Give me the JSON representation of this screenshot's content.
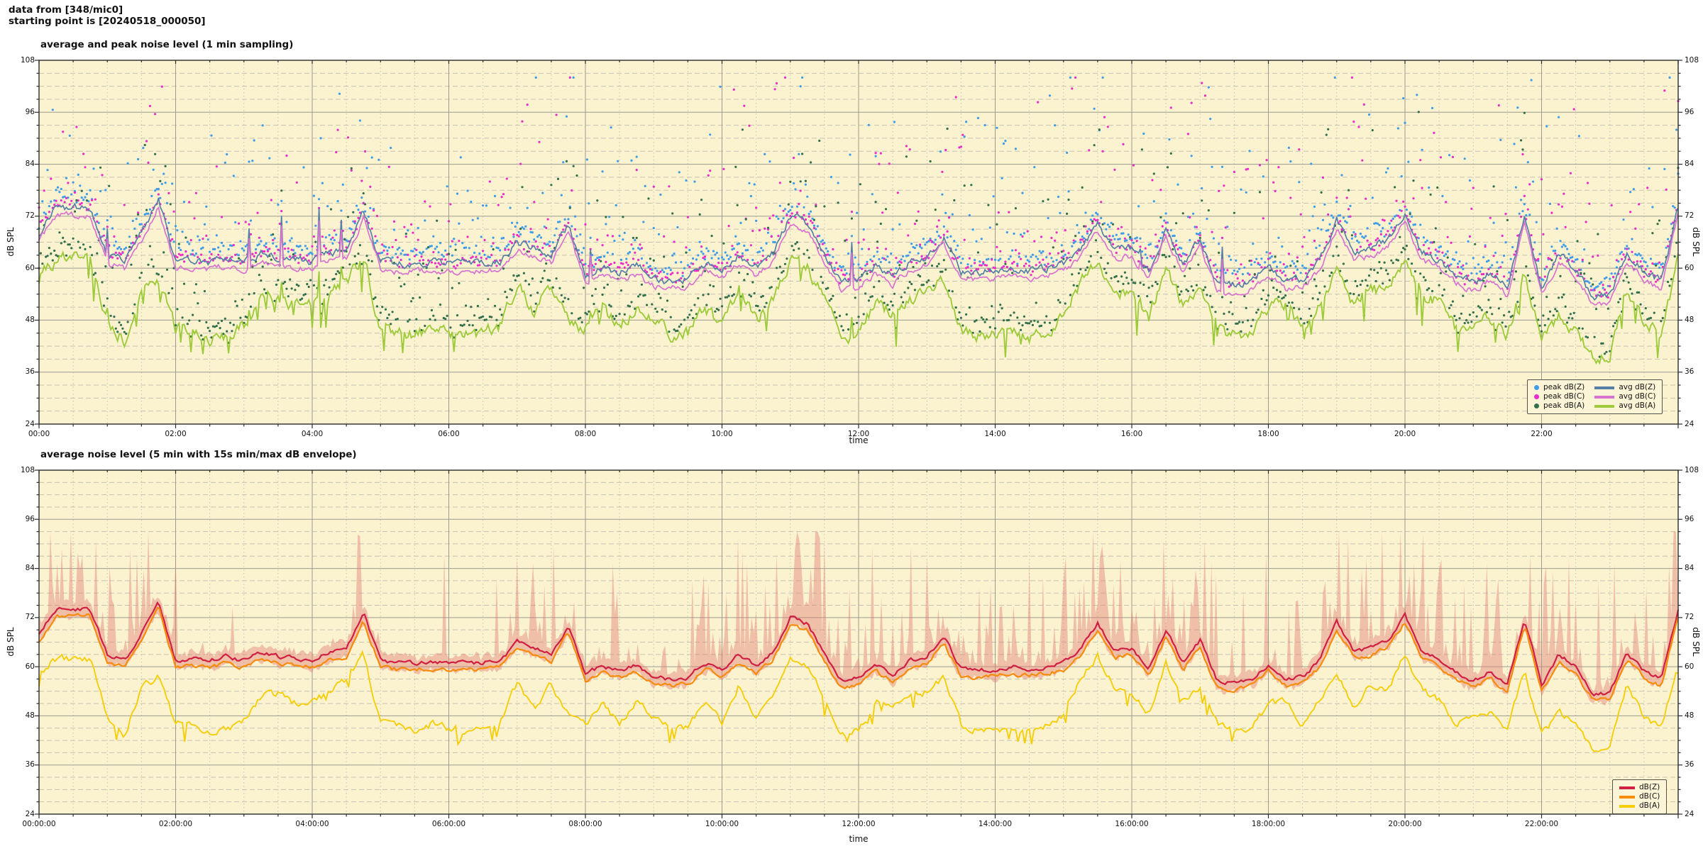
{
  "header": {
    "line1": "data from [348/mic0]",
    "line2": "starting point is [20240518_000050]"
  },
  "colors": {
    "page_bg": "#ffffff",
    "plot_bg": "#fbf2d0",
    "border": "#2b2b2b",
    "grid_major": "#9d9b90",
    "grid_minor": "#c6c2b2",
    "avg_dbz": "#557fa6",
    "avg_dbc": "#d773cf",
    "avg_dba": "#9ecb3b",
    "peak_dbz": "#3f9ce8",
    "peak_dbc": "#ec2cc8",
    "peak_dba": "#31704a",
    "bot_dbz": "#cf1f43",
    "bot_dbc": "#f68b0c",
    "bot_dba": "#f5ce0a",
    "envelope": "rgba(225,122,110,0.42)"
  },
  "plots": [
    {
      "title": "average and peak noise level (1 min sampling)",
      "xlabel": "time",
      "ylabel_left": "dB SPL",
      "ylabel_right": "dB SPL",
      "x_tick_labels": [
        "00:00",
        "02:00",
        "04:00",
        "06:00",
        "08:00",
        "10:00",
        "12:00",
        "14:00",
        "16:00",
        "18:00",
        "20:00",
        "22:00"
      ],
      "y_tick_labels": [
        24,
        36,
        48,
        60,
        72,
        84,
        96,
        108
      ],
      "legend_scatter": [
        {
          "label": "peak dB(Z)",
          "color": "#3f9ce8"
        },
        {
          "label": "peak dB(C)",
          "color": "#ec2cc8"
        },
        {
          "label": "peak dB(A)",
          "color": "#31704a"
        }
      ],
      "legend_lines": [
        {
          "label": "avg dB(Z)",
          "color": "#557fa6"
        },
        {
          "label": "avg dB(C)",
          "color": "#d773cf"
        },
        {
          "label": "avg dB(A)",
          "color": "#9ecb3b"
        }
      ]
    },
    {
      "title": "average noise level (5 min with 15s min/max dB envelope)",
      "xlabel": "time",
      "ylabel_left": "dB SPL",
      "ylabel_right": "dB SPL",
      "x_tick_labels": [
        "00:00:00",
        "02:00:00",
        "04:00:00",
        "06:00:00",
        "08:00:00",
        "10:00:00",
        "12:00:00",
        "14:00:00",
        "16:00:00",
        "18:00:00",
        "20:00:00",
        "22:00:00"
      ],
      "y_tick_labels": [
        24,
        36,
        48,
        60,
        72,
        84,
        96,
        108
      ],
      "legend_lines": [
        {
          "label": "dB(Z)",
          "color": "#cf1f43"
        },
        {
          "label": "dB(C)",
          "color": "#f68b0c"
        },
        {
          "label": "dB(A)",
          "color": "#f5ce0a"
        }
      ]
    }
  ],
  "chart_data": {
    "type": "line",
    "x_axis": {
      "label": "time",
      "range_hours": [
        0,
        24
      ],
      "major_tick_step_hours": 2,
      "minor_tick_step_minutes": 30
    },
    "y_axis": {
      "label": "dB SPL",
      "range": [
        24,
        108
      ],
      "major_step": 12,
      "minor_step": 3
    },
    "grid": "major solid + minor dashed, cream background",
    "anchor_step_minutes": 15,
    "series_anchors": {
      "avg_dbz": [
        68,
        74,
        74,
        74,
        63,
        61.5,
        68,
        76,
        61.5,
        62,
        61.5,
        62.5,
        61.5,
        63.5,
        62.5,
        62,
        61.5,
        63.5,
        64,
        73,
        61.5,
        61,
        61,
        61.2,
        61,
        61,
        61,
        61.5,
        66,
        64.5,
        63,
        70,
        58.5,
        60,
        59,
        60.5,
        57.5,
        57,
        57.5,
        61,
        59.5,
        63,
        60,
        63.5,
        72,
        70.5,
        63,
        56.5,
        57.5,
        60.5,
        58,
        61.5,
        62.5,
        67.5,
        59.5,
        59,
        59.5,
        60,
        59.5,
        60,
        61,
        64.5,
        70.5,
        64,
        64.5,
        59.5,
        69,
        61,
        66.5,
        56.5,
        56,
        57,
        60.5,
        57,
        57.5,
        61.5,
        71,
        64,
        64.5,
        66.5,
        72.5,
        63.5,
        62,
        58.5,
        56.5,
        59,
        55.5,
        72,
        55.5,
        63,
        60,
        53.5,
        53.5,
        63.5,
        59,
        57,
        74
      ],
      "avg_dba": [
        58,
        62,
        62,
        62,
        48,
        43,
        55,
        57.5,
        46,
        46.5,
        44,
        44.5,
        47,
        52.5,
        53.5,
        51,
        52,
        53.5,
        57,
        63,
        46,
        45.5,
        44.5,
        46,
        45,
        44.5,
        45,
        46.5,
        56,
        50,
        56,
        48,
        46,
        50.5,
        46,
        51.5,
        48,
        44.5,
        45,
        51.5,
        46,
        55.5,
        48,
        52,
        62,
        60,
        53,
        43.5,
        44.5,
        52,
        49.5,
        53,
        54,
        57.5,
        46,
        44.5,
        44.5,
        45,
        44,
        45.5,
        48.5,
        57,
        62.5,
        55,
        53.5,
        48,
        61,
        51,
        55.5,
        46,
        44.5,
        44.5,
        51,
        51.5,
        45.5,
        52,
        58.5,
        50.5,
        56,
        54,
        63,
        54,
        52,
        45.5,
        48,
        48.5,
        45,
        59,
        43,
        49,
        45.5,
        39.5,
        40,
        55.5,
        47.5,
        44.5,
        62
      ],
      "avg_dbc_offset_from_z": -1.8
    },
    "spike_regions_hours": [
      [
        0.05,
        0.95,
        0.3
      ],
      [
        1.0,
        2.05,
        0.3
      ],
      [
        2.05,
        4.3,
        0.08
      ],
      [
        4.3,
        5.0,
        0.35
      ],
      [
        5.0,
        6.8,
        0.04
      ],
      [
        6.8,
        8.0,
        0.5
      ],
      [
        8.0,
        9.7,
        0.25
      ],
      [
        9.7,
        11.7,
        0.55
      ],
      [
        11.7,
        13.0,
        0.4
      ],
      [
        13.0,
        17.2,
        0.55
      ],
      [
        17.2,
        18.8,
        0.25
      ],
      [
        18.8,
        22.6,
        0.55
      ],
      [
        22.6,
        23.8,
        0.2
      ],
      [
        23.8,
        24.0,
        0.6
      ]
    ],
    "plots": [
      {
        "title": "average and peak noise level (1 min sampling)",
        "series": [
          "peak dB(Z)",
          "peak dB(C)",
          "peak dB(A)",
          "avg dB(Z)",
          "avg dB(C)",
          "avg dB(A)"
        ],
        "note": "peak scatter points lie roughly 1-25 dB above the corresponding avg lines; densest and highest (up to ~90 dB) between 07:00 and 22:00"
      },
      {
        "title": "average noise level (5 min with 15s min/max dB envelope)",
        "series": [
          "dB(Z)",
          "dB(C)",
          "dB(A)"
        ],
        "envelope": "pale red 15s min/max band hugging dB(Z), with narrow spikes up to ~90 dB in the active regions"
      }
    ]
  }
}
